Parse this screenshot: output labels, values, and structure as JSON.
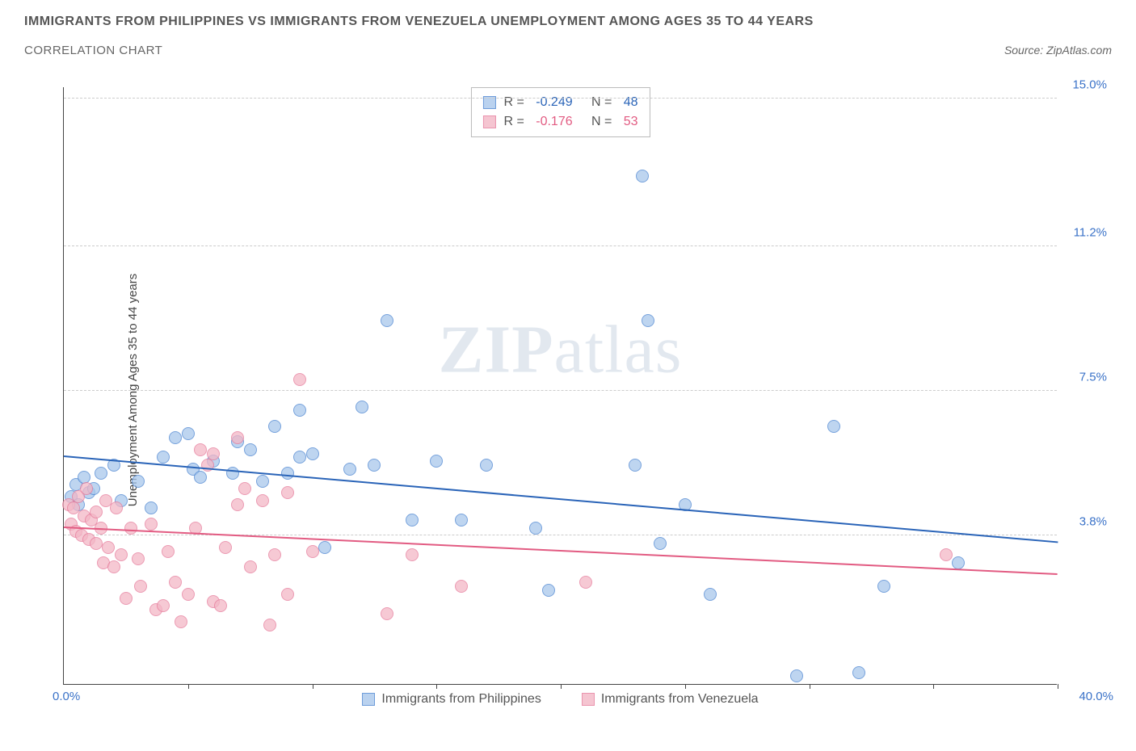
{
  "title": "IMMIGRANTS FROM PHILIPPINES VS IMMIGRANTS FROM VENEZUELA UNEMPLOYMENT AMONG AGES 35 TO 44 YEARS",
  "subtitle": "CORRELATION CHART",
  "source": "Source: ZipAtlas.com",
  "y_axis": {
    "label": "Unemployment Among Ages 35 to 44 years",
    "ticks": [
      0.0,
      3.8,
      7.5,
      11.2,
      15.0
    ],
    "tick_labels": [
      "0.0%",
      "3.8%",
      "7.5%",
      "11.2%",
      "15.0%"
    ],
    "min": 0.0,
    "max": 15.3,
    "label_color": "#3a72c8"
  },
  "x_axis": {
    "min": 0.0,
    "max": 40.0,
    "min_label": "0.0%",
    "max_label": "40.0%",
    "tick_positions": [
      0,
      5,
      10,
      15,
      20,
      25,
      30,
      35,
      40
    ],
    "label_color": "#3a72c8"
  },
  "series": [
    {
      "name": "Immigrants from Philippines",
      "color_fill": "#a9c8ec",
      "color_stroke": "#4a84d1",
      "trend_color": "#2a64b8",
      "R": "-0.249",
      "N": "48",
      "trend": {
        "y_at_xmin": 5.8,
        "y_at_xmax": 3.6
      },
      "points": [
        [
          0.3,
          4.8
        ],
        [
          0.5,
          5.1
        ],
        [
          0.6,
          4.6
        ],
        [
          0.8,
          5.3
        ],
        [
          1.0,
          4.9
        ],
        [
          1.2,
          5.0
        ],
        [
          1.5,
          5.4
        ],
        [
          2.0,
          5.6
        ],
        [
          2.3,
          4.7
        ],
        [
          3.0,
          5.2
        ],
        [
          3.5,
          4.5
        ],
        [
          4.0,
          5.8
        ],
        [
          4.5,
          6.3
        ],
        [
          5.0,
          6.4
        ],
        [
          5.2,
          5.5
        ],
        [
          5.5,
          5.3
        ],
        [
          6.0,
          5.7
        ],
        [
          6.8,
          5.4
        ],
        [
          7.0,
          6.2
        ],
        [
          7.5,
          6.0
        ],
        [
          8.0,
          5.2
        ],
        [
          8.5,
          6.6
        ],
        [
          9.0,
          5.4
        ],
        [
          9.5,
          5.8
        ],
        [
          9.5,
          7.0
        ],
        [
          10.0,
          5.9
        ],
        [
          10.5,
          3.5
        ],
        [
          11.5,
          5.5
        ],
        [
          12.0,
          7.1
        ],
        [
          12.5,
          5.6
        ],
        [
          13.0,
          9.3
        ],
        [
          14.0,
          4.2
        ],
        [
          15.0,
          5.7
        ],
        [
          16.0,
          4.2
        ],
        [
          17.0,
          5.6
        ],
        [
          19.0,
          4.0
        ],
        [
          19.5,
          2.4
        ],
        [
          23.0,
          5.6
        ],
        [
          23.5,
          9.3
        ],
        [
          23.3,
          13.0
        ],
        [
          24.0,
          3.6
        ],
        [
          25.0,
          4.6
        ],
        [
          26.0,
          2.3
        ],
        [
          29.5,
          0.2
        ],
        [
          31.0,
          6.6
        ],
        [
          32.0,
          0.3
        ],
        [
          33.0,
          2.5
        ],
        [
          36.0,
          3.1
        ]
      ]
    },
    {
      "name": "Immigrants from Venezuela",
      "color_fill": "#f3b7c6",
      "color_stroke": "#e67a9a",
      "trend_color": "#e25b82",
      "R": "-0.176",
      "N": "53",
      "trend": {
        "y_at_xmin": 4.0,
        "y_at_xmax": 2.8
      },
      "points": [
        [
          0.2,
          4.6
        ],
        [
          0.3,
          4.1
        ],
        [
          0.4,
          4.5
        ],
        [
          0.5,
          3.9
        ],
        [
          0.6,
          4.8
        ],
        [
          0.7,
          3.8
        ],
        [
          0.8,
          4.3
        ],
        [
          0.9,
          5.0
        ],
        [
          1.0,
          3.7
        ],
        [
          1.1,
          4.2
        ],
        [
          1.3,
          3.6
        ],
        [
          1.3,
          4.4
        ],
        [
          1.5,
          4.0
        ],
        [
          1.6,
          3.1
        ],
        [
          1.7,
          4.7
        ],
        [
          1.8,
          3.5
        ],
        [
          2.0,
          3.0
        ],
        [
          2.1,
          4.5
        ],
        [
          2.3,
          3.3
        ],
        [
          2.5,
          2.2
        ],
        [
          2.7,
          4.0
        ],
        [
          3.0,
          3.2
        ],
        [
          3.1,
          2.5
        ],
        [
          3.5,
          4.1
        ],
        [
          3.7,
          1.9
        ],
        [
          4.0,
          2.0
        ],
        [
          4.2,
          3.4
        ],
        [
          4.5,
          2.6
        ],
        [
          4.7,
          1.6
        ],
        [
          5.0,
          2.3
        ],
        [
          5.3,
          4.0
        ],
        [
          5.5,
          6.0
        ],
        [
          5.8,
          5.6
        ],
        [
          6.0,
          2.1
        ],
        [
          6.0,
          5.9
        ],
        [
          6.3,
          2.0
        ],
        [
          6.5,
          3.5
        ],
        [
          7.0,
          4.6
        ],
        [
          7.0,
          6.3
        ],
        [
          7.3,
          5.0
        ],
        [
          7.5,
          3.0
        ],
        [
          8.0,
          4.7
        ],
        [
          8.3,
          1.5
        ],
        [
          8.5,
          3.3
        ],
        [
          9.0,
          4.9
        ],
        [
          9.0,
          2.3
        ],
        [
          9.5,
          7.8
        ],
        [
          10.0,
          3.4
        ],
        [
          13.0,
          1.8
        ],
        [
          14.0,
          3.3
        ],
        [
          16.0,
          2.5
        ],
        [
          21.0,
          2.6
        ],
        [
          35.5,
          3.3
        ]
      ]
    }
  ],
  "watermark": {
    "prefix": "ZIP",
    "suffix": "atlas"
  },
  "chart": {
    "background": "#ffffff",
    "grid_color": "#cccccc",
    "axis_color": "#444444",
    "dot_radius": 8,
    "dot_opacity": 0.75
  }
}
